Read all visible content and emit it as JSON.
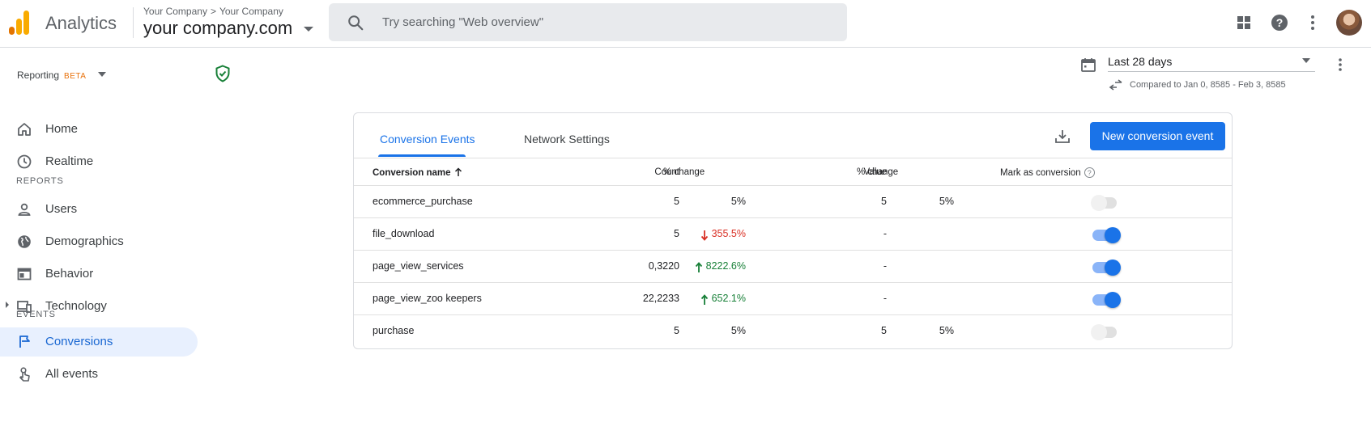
{
  "header": {
    "app_name": "Analytics",
    "breadcrumb": [
      "Your Company",
      "Your Company"
    ],
    "breadcrumb_sep": ">",
    "account": "your company.com",
    "search_placeholder": "Try searching \"Web overview\"",
    "icons": [
      "apps-grid-icon",
      "help-icon",
      "more-vert-icon",
      "avatar"
    ]
  },
  "sidebar": {
    "reporting_label": "Reporting",
    "beta_label": "BETA",
    "items_top": [
      {
        "label": "Home",
        "icon": "home-icon"
      },
      {
        "label": "Realtime",
        "icon": "clock-icon"
      }
    ],
    "reports_section": "REPORTS",
    "reports": [
      {
        "label": "Users",
        "icon": "person-icon"
      },
      {
        "label": "Demographics",
        "icon": "globe-icon"
      },
      {
        "label": "Behavior",
        "icon": "web-icon"
      },
      {
        "label": "Technology",
        "icon": "devices-icon"
      }
    ],
    "events_section": "EVENTS",
    "events": [
      {
        "label": "Conversions",
        "icon": "flag-icon",
        "active": true
      },
      {
        "label": "All events",
        "icon": "touch-icon"
      }
    ]
  },
  "date_range": {
    "label": "Last 28 days",
    "compare": "Compared to Jan 0, 8585 - Feb 3, 8585"
  },
  "card": {
    "tabs": [
      "Conversion Events",
      "Network Settings"
    ],
    "active_tab": 0,
    "new_button": "New conversion event",
    "columns": {
      "name": "Conversion name",
      "count": "Count",
      "count_change": "% change",
      "value": "Value",
      "value_change": "% change",
      "mark": "Mark as conversion",
      "help": "?"
    },
    "rows": [
      {
        "name": "ecommerce_purchase",
        "count": "5",
        "pct": "5%",
        "trend": "none",
        "value": "5",
        "vpct": "5%",
        "marked": false
      },
      {
        "name": "file_download",
        "count": "5",
        "pct": "355.5%",
        "trend": "down",
        "value": "-",
        "vpct": "",
        "marked": true
      },
      {
        "name": "page_view_services",
        "count": "0,3220",
        "pct": "8222.6%",
        "trend": "up",
        "value": "-",
        "vpct": "",
        "marked": true
      },
      {
        "name": "page_view_zoo keepers",
        "count": "22,2233",
        "pct": "652.1%",
        "trend": "up",
        "value": "-",
        "vpct": "",
        "marked": true
      },
      {
        "name": "purchase",
        "count": "5",
        "pct": "5%",
        "trend": "none",
        "value": "5",
        "vpct": "5%",
        "marked": false
      }
    ]
  },
  "colors": {
    "accent": "#1a73e8",
    "down": "#d93025",
    "up": "#188038",
    "beta": "#e8710a",
    "logo_orange": "#f9ab00",
    "logo_dark": "#e37400"
  }
}
